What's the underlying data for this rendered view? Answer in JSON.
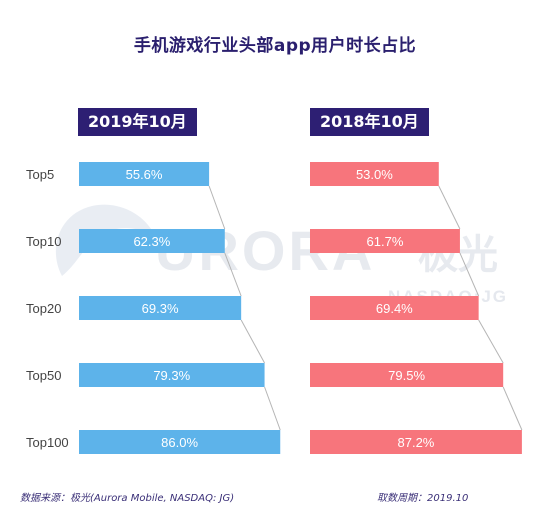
{
  "title": "手机游戏行业头部app用户时长占比",
  "watermark": {
    "brand": "URORA",
    "brand_cn": "极光",
    "ticker": "NASDAQ:JG"
  },
  "footer": {
    "source": "数据来源：极光(Aurora Mobile, NASDAQ: JG)",
    "period": "取数周期：2019.10"
  },
  "colors": {
    "left_bar": "#5db3ea",
    "right_bar": "#f7757c",
    "tag_bg": "#2d1f73",
    "title": "#2a1f6e"
  },
  "chart_data": [
    {
      "type": "bar",
      "title": "2019年10月",
      "orientation": "horizontal",
      "categories": [
        "Top5",
        "Top10",
        "Top20",
        "Top50",
        "Top100"
      ],
      "values": [
        55.6,
        62.3,
        69.3,
        79.3,
        86.0
      ],
      "value_labels": [
        "55.6%",
        "62.3%",
        "69.3%",
        "79.3%",
        "86.0%"
      ],
      "unit": "%",
      "xlim": [
        0,
        100
      ]
    },
    {
      "type": "bar",
      "title": "2018年10月",
      "orientation": "horizontal",
      "categories": [
        "Top5",
        "Top10",
        "Top20",
        "Top50",
        "Top100"
      ],
      "values": [
        53.0,
        61.7,
        69.4,
        79.5,
        87.2
      ],
      "value_labels": [
        "53.0%",
        "61.7%",
        "69.4%",
        "79.5%",
        "87.2%"
      ],
      "unit": "%",
      "xlim": [
        0,
        100
      ]
    }
  ]
}
